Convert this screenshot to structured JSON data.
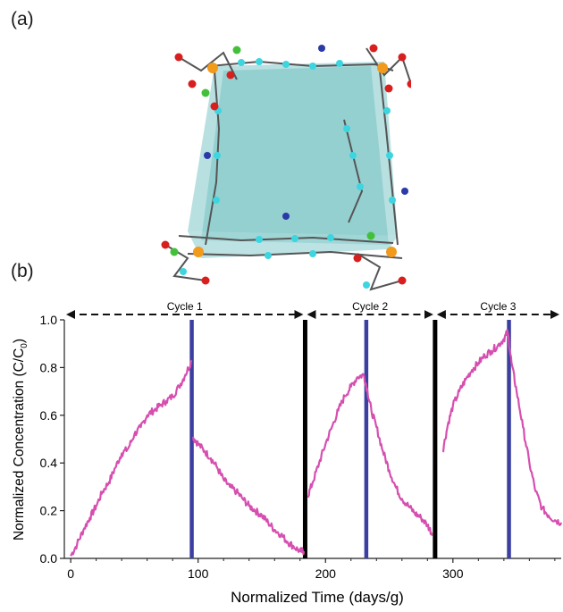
{
  "panels": {
    "a_label": "(a)",
    "b_label": "(b)"
  },
  "structure": {
    "description_icon": "molecular-cage-icon",
    "colors": {
      "face": "#7fc6c8",
      "carbon": "#3dd5e0",
      "oxygen": "#d91e1e",
      "metal": "#f29a1b",
      "chlorine": "#43c03a",
      "nitrogen": "#2c3aa8",
      "bond": "#555555"
    }
  },
  "chart_data": {
    "type": "line",
    "title": "",
    "xlabel": "Normalized Time (days/g)",
    "ylabel": "Normalized Concentration (C/C₀)",
    "ylabel_main": "Normalized Concentration (C/C",
    "ylabel_sub": "0",
    "ylabel_close": ")",
    "xlim": [
      -5,
      385
    ],
    "ylim": [
      0,
      1.0
    ],
    "x_ticks": [
      0,
      100,
      200,
      300
    ],
    "x_tick_labels": [
      "0",
      "100",
      "200",
      "300"
    ],
    "y_ticks": [
      0.0,
      0.2,
      0.4,
      0.6,
      0.8,
      1.0
    ],
    "y_tick_labels": [
      "0.0",
      "0.2",
      "0.4",
      "0.6",
      "0.8",
      "1.0"
    ],
    "grid": false,
    "line_color": "#d64fb0",
    "cycles": [
      {
        "label": "Cycle 1",
        "start": -5,
        "end": 184
      },
      {
        "label": "Cycle 2",
        "start": 184,
        "end": 286
      },
      {
        "label": "Cycle 3",
        "start": 286,
        "end": 385
      }
    ],
    "cycle_boundaries": [
      184,
      286
    ],
    "regeneration_markers": [
      95,
      232,
      344
    ],
    "marker_color": "#3b3fa0",
    "boundary_color": "#000000",
    "series": [
      {
        "values_xy": [
          [
            0,
            0.01
          ],
          [
            5,
            0.06
          ],
          [
            10,
            0.12
          ],
          [
            15,
            0.17
          ],
          [
            20,
            0.22
          ],
          [
            25,
            0.28
          ],
          [
            30,
            0.32
          ],
          [
            35,
            0.38
          ],
          [
            40,
            0.44
          ],
          [
            45,
            0.46
          ],
          [
            50,
            0.52
          ],
          [
            55,
            0.55
          ],
          [
            60,
            0.6
          ],
          [
            65,
            0.62
          ],
          [
            70,
            0.64
          ],
          [
            75,
            0.66
          ],
          [
            80,
            0.68
          ],
          [
            85,
            0.72
          ],
          [
            90,
            0.77
          ],
          [
            95,
            0.83
          ],
          [
            96,
            0.51
          ],
          [
            100,
            0.48
          ],
          [
            105,
            0.45
          ],
          [
            110,
            0.42
          ],
          [
            115,
            0.38
          ],
          [
            120,
            0.33
          ],
          [
            125,
            0.3
          ],
          [
            130,
            0.28
          ],
          [
            135,
            0.25
          ],
          [
            140,
            0.22
          ],
          [
            145,
            0.2
          ],
          [
            150,
            0.18
          ],
          [
            155,
            0.15
          ],
          [
            160,
            0.12
          ],
          [
            165,
            0.1
          ],
          [
            170,
            0.07
          ],
          [
            175,
            0.05
          ],
          [
            180,
            0.03
          ],
          [
            183,
            0.03
          ],
          [
            186,
            0.26
          ],
          [
            190,
            0.32
          ],
          [
            195,
            0.4
          ],
          [
            200,
            0.48
          ],
          [
            205,
            0.55
          ],
          [
            210,
            0.62
          ],
          [
            215,
            0.68
          ],
          [
            220,
            0.72
          ],
          [
            225,
            0.76
          ],
          [
            230,
            0.77
          ],
          [
            233,
            0.7
          ],
          [
            236,
            0.62
          ],
          [
            240,
            0.55
          ],
          [
            245,
            0.45
          ],
          [
            250,
            0.37
          ],
          [
            255,
            0.3
          ],
          [
            260,
            0.25
          ],
          [
            265,
            0.22
          ],
          [
            270,
            0.19
          ],
          [
            275,
            0.17
          ],
          [
            280,
            0.14
          ],
          [
            284,
            0.1
          ],
          [
            288,
            0.28
          ],
          [
            292,
            0.45
          ],
          [
            296,
            0.56
          ],
          [
            300,
            0.64
          ],
          [
            305,
            0.7
          ],
          [
            310,
            0.75
          ],
          [
            315,
            0.79
          ],
          [
            320,
            0.82
          ],
          [
            325,
            0.85
          ],
          [
            330,
            0.87
          ],
          [
            335,
            0.89
          ],
          [
            340,
            0.92
          ],
          [
            343,
            0.95
          ],
          [
            346,
            0.82
          ],
          [
            350,
            0.7
          ],
          [
            355,
            0.55
          ],
          [
            360,
            0.4
          ],
          [
            365,
            0.28
          ],
          [
            370,
            0.21
          ],
          [
            375,
            0.18
          ],
          [
            380,
            0.16
          ],
          [
            385,
            0.15
          ]
        ]
      }
    ]
  }
}
